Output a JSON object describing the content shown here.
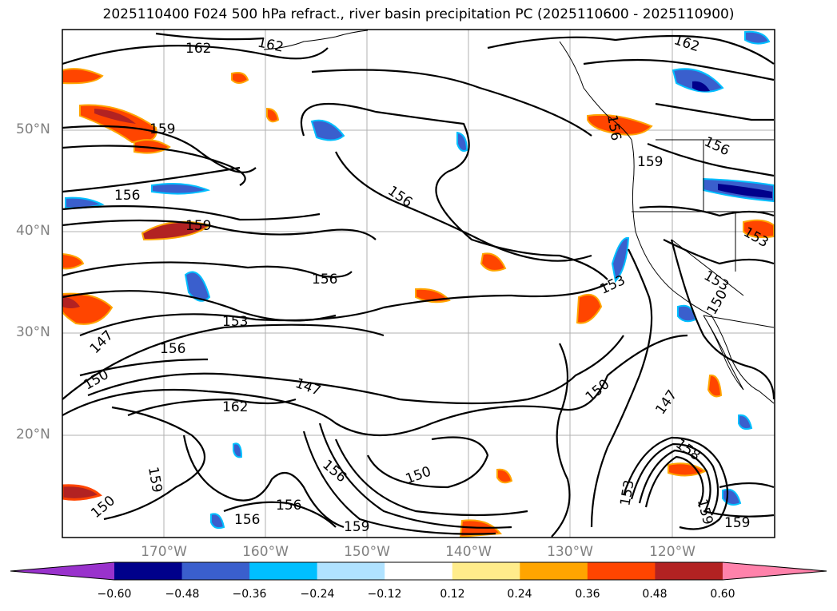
{
  "title": "2025110400 F024 500 hPa refract., river basin precipitation PC (2025110600 - 2025110900)",
  "lat_labels": [
    "50°N",
    "40°N",
    "30°N",
    "20°N"
  ],
  "lon_labels": [
    "170°W",
    "160°W",
    "150°W",
    "140°W",
    "130°W",
    "120°W"
  ],
  "contour_labels": [
    "162",
    "162",
    "162",
    "159",
    "156",
    "159",
    "156",
    "156",
    "153",
    "156",
    "147",
    "150",
    "147",
    "162",
    "150",
    "156",
    "159",
    "156",
    "156",
    "159",
    "150",
    "150",
    "147",
    "153",
    "156",
    "159",
    "156",
    "153",
    "158",
    "153",
    "159",
    "159",
    "153",
    "150"
  ],
  "colorbar": {
    "ticks": [
      "−0.60",
      "−0.48",
      "−0.36",
      "−0.24",
      "−0.12",
      "0.12",
      "0.24",
      "0.36",
      "0.48",
      "0.60"
    ],
    "colors": [
      "#9932cc",
      "#00008b",
      "#3a5fcd",
      "#00bfff",
      "#b0e2ff",
      "#ffffff",
      "#ffec8b",
      "#ffa500",
      "#ff4500",
      "#b22222",
      "#ff82ab"
    ]
  },
  "colors": {
    "contour": "#000000",
    "coast": "#000000",
    "grid": "#b0b0b0",
    "axis_text": "#808080"
  }
}
